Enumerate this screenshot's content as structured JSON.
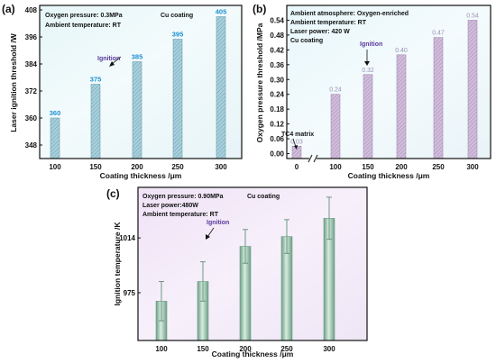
{
  "panels": [
    {
      "letter": "(a)",
      "notes": [
        "Oxygen pressure: 0.3MPa",
        "Ambient  temperature: RT"
      ],
      "note_right": "Cu coating",
      "ignition_label": "Ignition"
    },
    {
      "letter": "(b)",
      "notes": [
        "Ambient atmosphere: Oxygen-enriched",
        "Ambient  temperature: RT",
        "Laser power:  420 W",
        "Cu coating"
      ],
      "ignition_label": "Ignition",
      "matrix_label": "TC4 matrix"
    },
    {
      "letter": "(c)",
      "notes": [
        "Oxygen pressure: 0.90MPa",
        "Laser power:480W",
        "Ambient temperature: RT"
      ],
      "note_right": "Cu coating",
      "ignition_label": "Ignition"
    }
  ],
  "colors": {
    "bar_a": "#9fcbd8",
    "bar_b": "#cbb4d6",
    "bar_c": "#8fbba3",
    "value_label_a": "#1a8fd1",
    "value_label_b": "#9a8fb3",
    "ignition_text": "#5b3a9c"
  },
  "chart_data": [
    {
      "type": "bar",
      "categories": [
        "100",
        "150",
        "200",
        "250",
        "300"
      ],
      "values": [
        360,
        375,
        385,
        395,
        405
      ],
      "data_labels": [
        "360",
        "375",
        "385",
        "395",
        "405"
      ],
      "xlabel": "Coating thickness /μm",
      "ylabel": "Laser ignition threshold /W",
      "yticks": [
        "348",
        "360",
        "372",
        "384",
        "396",
        "408"
      ],
      "ylim": [
        342,
        410
      ]
    },
    {
      "type": "bar",
      "categories": [
        "0",
        "100",
        "150",
        "200",
        "250",
        "300"
      ],
      "values": [
        0.03,
        0.24,
        0.32,
        0.4,
        0.47,
        0.54
      ],
      "data_labels": [
        "0.03",
        "0.24",
        "0.32",
        "0.40",
        "0.47",
        "0.54"
      ],
      "xlabel": "Coating thickness /μm",
      "ylabel": "Oxygen pressure threshold /MPa",
      "yticks": [
        "0.00",
        "0.06",
        "0.12",
        "0.18",
        "0.24",
        "0.30",
        "0.36",
        "0.42",
        "0.48",
        "0.54"
      ],
      "ylim": [
        -0.02,
        0.6
      ],
      "axis_break": true
    },
    {
      "type": "bar",
      "categories": [
        "100",
        "150",
        "200",
        "250",
        "300"
      ],
      "values": [
        969,
        983,
        1008,
        1015,
        1028
      ],
      "errors": [
        14,
        14,
        12,
        12,
        15
      ],
      "xlabel": "Coating thickness /μm",
      "ylabel": "Ignition temperature /K",
      "yticks": [
        "975",
        "1014"
      ],
      "ylim": [
        941,
        1050
      ]
    }
  ]
}
